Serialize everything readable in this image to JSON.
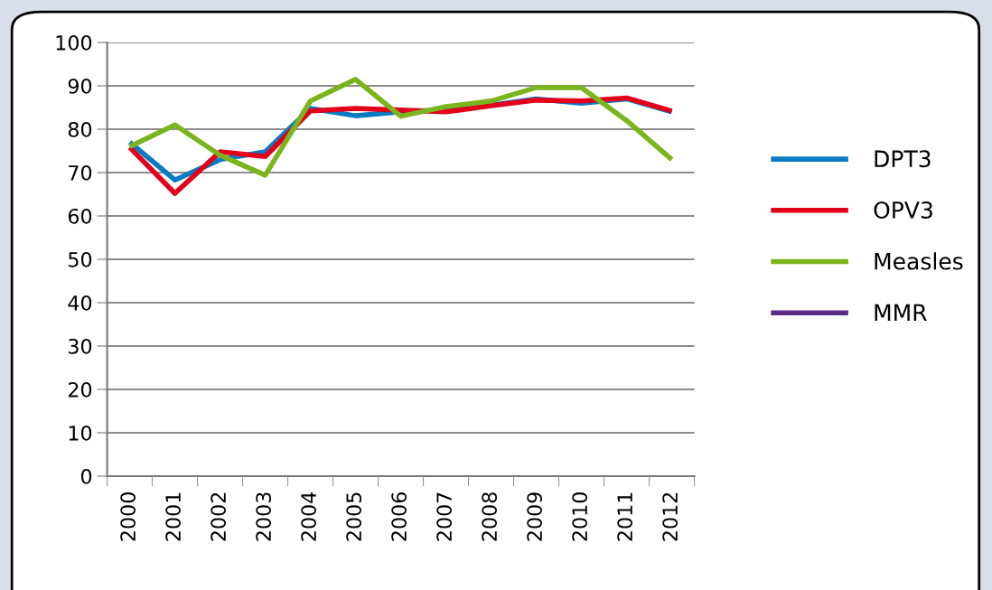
{
  "chart_data": {
    "type": "line",
    "categories": [
      "2000",
      "2001",
      "2002",
      "2003",
      "2004",
      "2005",
      "2006",
      "2007",
      "2008",
      "2009",
      "2010",
      "2011",
      "2012"
    ],
    "series": [
      {
        "name": "DPT3",
        "color": "#0a7ac2",
        "values": [
          77,
          68.3,
          73,
          74.8,
          84.8,
          83.1,
          84,
          84.5,
          85.5,
          87,
          86,
          87,
          84
        ]
      },
      {
        "name": "OPV3",
        "color": "#e2001a",
        "values": [
          75.8,
          65.2,
          74.8,
          73.7,
          84.2,
          84.8,
          84.4,
          84,
          85.4,
          86.7,
          86.5,
          87.2,
          84.2
        ]
      },
      {
        "name": "Measles",
        "color": "#7ab51d",
        "values": [
          76,
          81,
          74,
          69.4,
          86.5,
          91.5,
          83,
          85.2,
          86.5,
          89.6,
          89.6,
          82,
          73
        ]
      },
      {
        "name": "MMR",
        "color": "#5b2c83",
        "values": [
          null,
          null,
          null,
          null,
          null,
          null,
          null,
          null,
          null,
          null,
          null,
          null,
          null
        ]
      }
    ],
    "ylim": [
      0,
      100
    ],
    "yticks": [
      0,
      10,
      20,
      30,
      40,
      50,
      60,
      70,
      80,
      90,
      100
    ],
    "grid": "y",
    "legend": "right",
    "marker": "none",
    "line_style": "solid"
  }
}
